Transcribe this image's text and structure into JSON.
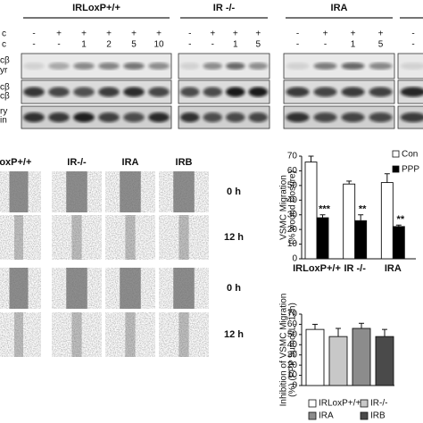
{
  "blot": {
    "groups": [
      {
        "title": "IRLoxP+/+",
        "row1": [
          "-",
          "+",
          "+",
          "+",
          "+",
          "+"
        ],
        "row2": [
          "-",
          "-",
          "1",
          "2",
          "5",
          "10"
        ]
      },
      {
        "title": "IR -/-",
        "row1": [
          "-",
          "+",
          "+",
          "+"
        ],
        "row2": [
          "-",
          "-",
          "1",
          "5"
        ]
      },
      {
        "title": "IRA",
        "row1": [
          "-",
          "+",
          "+",
          "+"
        ],
        "row2": [
          "-",
          "-",
          "1",
          "5"
        ]
      },
      {
        "row1": [
          "-"
        ],
        "row2": [
          "-"
        ]
      }
    ],
    "row_labels": [
      "c",
      "c"
    ],
    "band_labels": [
      "cβ",
      "yr",
      "cβ",
      "cβ",
      "ry",
      "in"
    ]
  },
  "wound": {
    "columns": [
      "LoxP+/+",
      "IR-/-",
      "IRA",
      "IRB"
    ],
    "rows": [
      "0 h",
      "12 h",
      "0 h",
      "12 h"
    ]
  },
  "chart_data": [
    {
      "type": "bar",
      "y_label": [
        "VSMC Migration",
        "(% wound closure)"
      ],
      "categories": [
        "IRLoxP+/+",
        "IR -/-",
        "IRA"
      ],
      "series": [
        {
          "name": "Con",
          "color": "#ffffff",
          "values": [
            66,
            51,
            52
          ],
          "errors": [
            4,
            2,
            6
          ]
        },
        {
          "name": "PPP",
          "color": "#000000",
          "values": [
            28,
            26,
            22
          ],
          "errors": [
            2,
            4,
            1
          ]
        }
      ],
      "annotations": [
        "***",
        "**",
        "**"
      ],
      "ylim": [
        0,
        70
      ],
      "yticks": [
        0,
        10,
        20,
        30,
        40,
        50,
        60,
        70
      ]
    },
    {
      "type": "bar",
      "y_label": [
        "Inhibition of VSMC Migration",
        "(%) (PPP 5µmol/L, 12h)"
      ],
      "categories": [
        "IRLoxP+/+",
        "IR-/-",
        "IRA",
        "IRB"
      ],
      "values": [
        55,
        48,
        56,
        48
      ],
      "errors": [
        5,
        8,
        5,
        7
      ],
      "colors": [
        "#ffffff",
        "#c8c8c8",
        "#8c8c8c",
        "#4a4a4a"
      ],
      "ylim": [
        0,
        70
      ],
      "yticks": [
        0,
        10,
        20,
        30,
        40,
        50,
        60,
        70
      ]
    }
  ]
}
